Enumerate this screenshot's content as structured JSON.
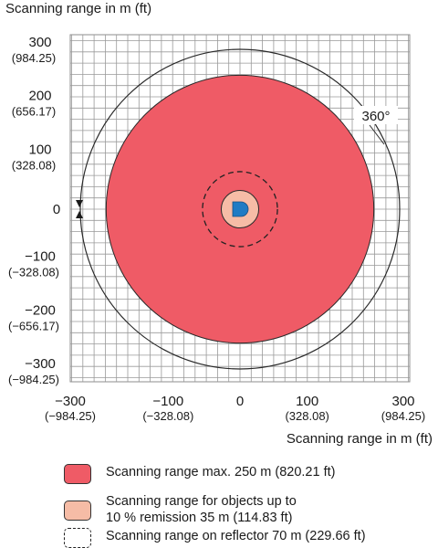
{
  "chart_data": {
    "type": "scanning-range-diagram",
    "ylabel": "Scanning range in m (ft)",
    "xlabel": "Scanning range in m (ft)",
    "xlim": [
      -300,
      300
    ],
    "ylim": [
      -300,
      300
    ],
    "grid": true,
    "y_ticks": [
      {
        "value": 300,
        "label": "300",
        "sublabel": "(984.25)"
      },
      {
        "value": 200,
        "label": "200",
        "sublabel": "(656.17)"
      },
      {
        "value": 100,
        "label": "100",
        "sublabel": "(328.08)"
      },
      {
        "value": 0,
        "label": "0",
        "sublabel": ""
      },
      {
        "value": -100,
        "label": "−100",
        "sublabel": "(−328.08)"
      },
      {
        "value": -200,
        "label": "−200",
        "sublabel": "(−656.17)"
      },
      {
        "value": -300,
        "label": "−300",
        "sublabel": "(−984.25)"
      }
    ],
    "x_ticks": [
      {
        "value": -300,
        "label": "−300",
        "sublabel": "(−984.25)"
      },
      {
        "value": -100,
        "label": "−100",
        "sublabel": "(−328.08)"
      },
      {
        "value": 0,
        "label": "0",
        "sublabel": ""
      },
      {
        "value": 100,
        "label": "100",
        "sublabel": "(328.08)"
      },
      {
        "value": 300,
        "label": "300",
        "sublabel": "(984.25)"
      }
    ],
    "ranges": [
      {
        "key": "max",
        "radius": 250,
        "style": "filled",
        "color": "#ef5b66"
      },
      {
        "key": "remission10",
        "radius": 35,
        "style": "filled",
        "color": "#f6bca6"
      },
      {
        "key": "reflector",
        "radius": 70,
        "style": "dashed",
        "color": "#222222"
      }
    ],
    "angle_label": "360°",
    "colors": {
      "sensor": "#1f7bc4",
      "grid": "#9a9a9a",
      "range": "#ef5b66",
      "remission": "#f6bca6"
    }
  },
  "legend": [
    {
      "key": "max",
      "text": "Scanning range max. 250 m (820.21 ft)",
      "swatch_color": "#ef5b66",
      "style": "filled"
    },
    {
      "key": "remission10",
      "text": "Scanning range for objects up to\n10 % remission 35 m (114.83 ft)",
      "swatch_color": "#f6bca6",
      "style": "filled"
    },
    {
      "key": "reflector",
      "text": "Scanning range on reflector 70 m (229.66 ft)",
      "swatch_color": "#ffffff",
      "style": "dashed"
    }
  ]
}
